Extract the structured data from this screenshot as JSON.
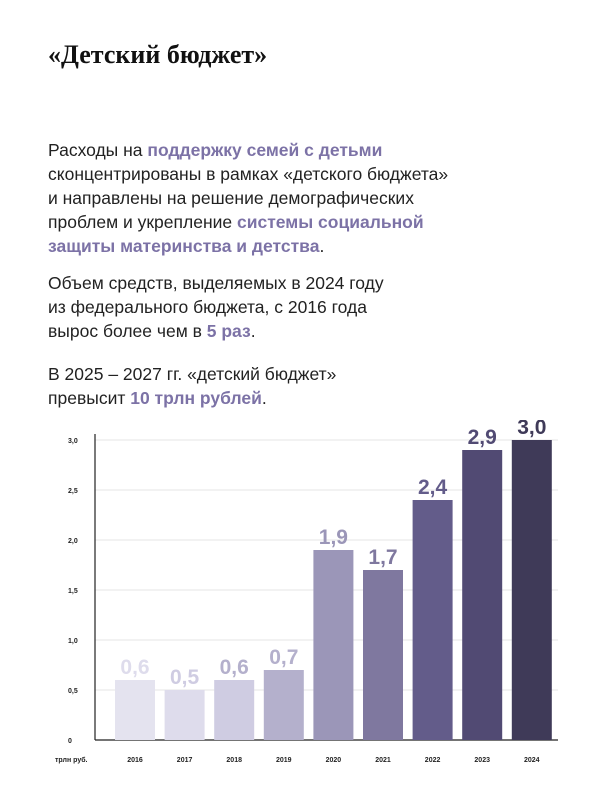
{
  "title": "«Детский бюджет»",
  "paragraphs": [
    {
      "lines": [
        [
          {
            "t": "Расходы на "
          },
          {
            "t": "поддержку семей с детьми",
            "hl": true
          }
        ],
        [
          {
            "t": "сконцентрированы в рамках «детского бюджета»"
          }
        ],
        [
          {
            "t": "и направлены на решение демографических"
          }
        ],
        [
          {
            "t": "проблем и укрепление "
          },
          {
            "t": "системы социальной",
            "hl": true
          }
        ],
        [
          {
            "t": "защиты материнства и детства",
            "hl": true
          },
          {
            "t": "."
          }
        ]
      ]
    },
    {
      "lines": [
        [
          {
            "t": "Объем средств, выделяемых в 2024 году"
          }
        ],
        [
          {
            "t": "из федерального бюджета, с 2016 года"
          }
        ],
        [
          {
            "t": "вырос более чем в "
          },
          {
            "t": "5 раз",
            "hl": true
          },
          {
            "t": "."
          }
        ]
      ]
    },
    {
      "lines": [
        [
          {
            "t": "В 2025 – 2027 гг. «детский бюджет»"
          }
        ],
        [
          {
            "t": "превысит "
          },
          {
            "t": "10 трлн рублей",
            "hl": true
          },
          {
            "t": "."
          }
        ]
      ]
    }
  ],
  "colors": {
    "highlight": "#7c72a6",
    "grid": "#e6e6e6",
    "axis": "#222222",
    "bars": [
      "#e4e3ef",
      "#dedcec",
      "#cfcce2",
      "#b4b0cc",
      "#9b96b8",
      "#7f789f",
      "#635c8a",
      "#514a73",
      "#3f3a58"
    ]
  },
  "chart_data": {
    "type": "bar",
    "categories": [
      "2016",
      "2017",
      "2018",
      "2019",
      "2020",
      "2021",
      "2022",
      "2023",
      "2024"
    ],
    "values": [
      0.6,
      0.5,
      0.6,
      0.7,
      1.9,
      1.7,
      2.4,
      2.9,
      3.0
    ],
    "value_labels": [
      "0,6",
      "0,5",
      "0,6",
      "0,7",
      "1,9",
      "1,7",
      "2,4",
      "2,9",
      "3,0"
    ],
    "yticks": [
      0,
      0.5,
      1.0,
      1.5,
      2.0,
      2.5,
      3.0
    ],
    "ytick_labels": [
      "0",
      "0,5",
      "1,0",
      "1,5",
      "2,0",
      "2,5",
      "3,0"
    ],
    "ylim": [
      0,
      3.0
    ],
    "unit_label": "трлн руб.",
    "grid": true
  }
}
